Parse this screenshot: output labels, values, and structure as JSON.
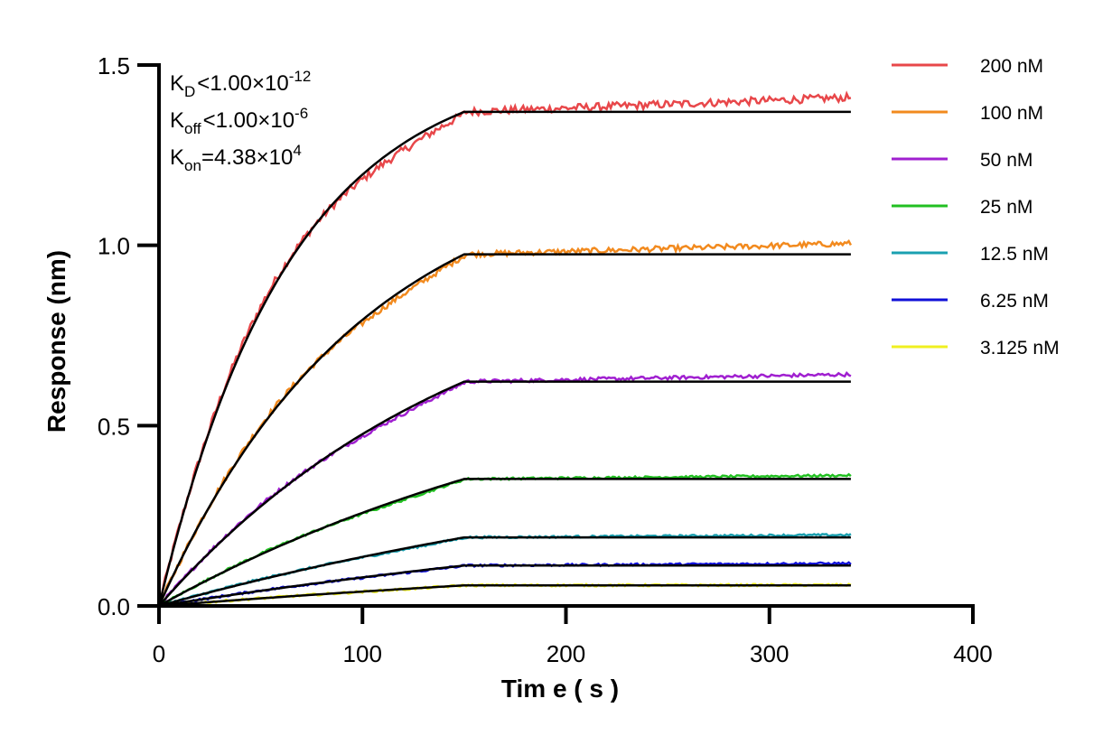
{
  "chart_data": {
    "type": "line",
    "xlabel": "Time (s)",
    "xlabel_display": "Tim e ( s )",
    "ylabel": "Response (nm)",
    "xlim": [
      0,
      400
    ],
    "ylim": [
      0,
      1.5
    ],
    "x_ticks": [
      0,
      100,
      200,
      300,
      400
    ],
    "x_tick_labels": [
      "0",
      "100",
      "200",
      "300",
      "400"
    ],
    "y_ticks": [
      0,
      0.5,
      1.0,
      1.5
    ],
    "y_tick_labels": [
      "0.0",
      "0.5",
      "1.0",
      "1.5"
    ],
    "grid": false,
    "legend_position": "right",
    "association_end": 150,
    "time_end": 340,
    "annotations": {
      "kd": {
        "main": "K",
        "sub": "D",
        "rest": "<1.00×10",
        "sup": "-12"
      },
      "koff": {
        "main": "K",
        "sub": "off",
        "rest": "<1.00×10",
        "sup": "-6"
      },
      "kon": {
        "main": "K",
        "sub": "on",
        "rest": "=4.38×10",
        "sup": "4"
      }
    },
    "fit_color": "#000000",
    "series": [
      {
        "name": "200 nM",
        "color": "#e8474a",
        "plateau": 1.37,
        "raw_end": 1.41,
        "k": 0.0155
      },
      {
        "name": "100 nM",
        "color": "#f28a1e",
        "plateau": 0.975,
        "raw_end": 1.005,
        "k": 0.01
      },
      {
        "name": "50 nM",
        "color": "#a020d0",
        "plateau": 0.622,
        "raw_end": 0.642,
        "k": 0.0064
      },
      {
        "name": "25 nM",
        "color": "#22c022",
        "plateau": 0.352,
        "raw_end": 0.362,
        "k": 0.0042
      },
      {
        "name": "12.5 nM",
        "color": "#1aa0b0",
        "plateau": 0.19,
        "raw_end": 0.197,
        "k": 0.003
      },
      {
        "name": "6.25 nM",
        "color": "#1010d8",
        "plateau": 0.112,
        "raw_end": 0.118,
        "k": 0.0024
      },
      {
        "name": "3.125 nM",
        "color": "#f0f020",
        "plateau": 0.057,
        "raw_end": 0.058,
        "k": 0.002
      }
    ]
  }
}
